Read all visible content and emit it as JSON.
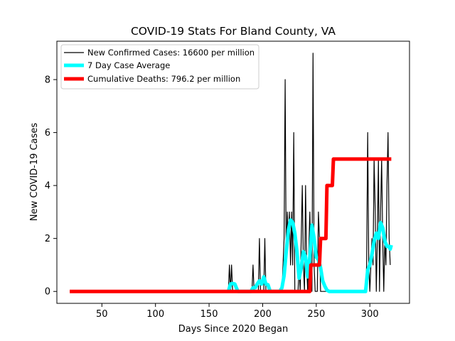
{
  "chart_data": {
    "type": "line",
    "title": "COVID-19 Stats For Bland County, VA",
    "xlabel": "Days Since 2020 Began",
    "ylabel": "New COVID-19 Cases",
    "xlim": [
      8,
      337
    ],
    "ylim": [
      -0.45,
      9.45
    ],
    "xticks": [
      50,
      100,
      150,
      200,
      250,
      300
    ],
    "yticks": [
      0,
      2,
      4,
      6,
      8
    ],
    "grid": false,
    "legend_position": "top-left",
    "series": [
      {
        "name": "New Confirmed Cases: 16600 per million",
        "color": "#000000",
        "points": [
          [
            20,
            0
          ],
          [
            168,
            0
          ],
          [
            169,
            1
          ],
          [
            170,
            0
          ],
          [
            171,
            1
          ],
          [
            172,
            0
          ],
          [
            190,
            0
          ],
          [
            191,
            1
          ],
          [
            192,
            0
          ],
          [
            196,
            0
          ],
          [
            197,
            2
          ],
          [
            198,
            0
          ],
          [
            201,
            0
          ],
          [
            202,
            2
          ],
          [
            203,
            0
          ],
          [
            218,
            0
          ],
          [
            219,
            1
          ],
          [
            220,
            2
          ],
          [
            221,
            8
          ],
          [
            222,
            1
          ],
          [
            223,
            3
          ],
          [
            224,
            2
          ],
          [
            225,
            3
          ],
          [
            226,
            1
          ],
          [
            227,
            3
          ],
          [
            228,
            1
          ],
          [
            229,
            6
          ],
          [
            230,
            0
          ],
          [
            233,
            0
          ],
          [
            234,
            1
          ],
          [
            235,
            0
          ],
          [
            236,
            2
          ],
          [
            237,
            4
          ],
          [
            238,
            1
          ],
          [
            239,
            0
          ],
          [
            240,
            4
          ],
          [
            241,
            1
          ],
          [
            242,
            0
          ],
          [
            244,
            3
          ],
          [
            245,
            1
          ],
          [
            246,
            0
          ],
          [
            247,
            9
          ],
          [
            248,
            1
          ],
          [
            249,
            0
          ],
          [
            251,
            0
          ],
          [
            252,
            3
          ],
          [
            253,
            2
          ],
          [
            254,
            0
          ],
          [
            255,
            0
          ],
          [
            258,
            0
          ],
          [
            296,
            0
          ],
          [
            297,
            1
          ],
          [
            298,
            6
          ],
          [
            299,
            1
          ],
          [
            300,
            0
          ],
          [
            302,
            2
          ],
          [
            303,
            1
          ],
          [
            304,
            5
          ],
          [
            305,
            3
          ],
          [
            306,
            0
          ],
          [
            307,
            2
          ],
          [
            308,
            5
          ],
          [
            309,
            0
          ],
          [
            310,
            3
          ],
          [
            311,
            5
          ],
          [
            312,
            2
          ],
          [
            313,
            0
          ],
          [
            314,
            2
          ],
          [
            315,
            1
          ],
          [
            316,
            4
          ],
          [
            317,
            6
          ],
          [
            318,
            2
          ],
          [
            319,
            1
          ]
        ]
      },
      {
        "name": "7 Day Case Average",
        "color": "#00ffff",
        "points": [
          [
            168,
            0
          ],
          [
            170,
            0.28
          ],
          [
            172,
            0.3
          ],
          [
            174,
            0.28
          ],
          [
            176,
            0.08
          ],
          [
            177,
            0
          ],
          [
            189,
            0
          ],
          [
            191,
            0.14
          ],
          [
            193,
            0.14
          ],
          [
            195,
            0.28
          ],
          [
            197,
            0.4
          ],
          [
            199,
            0.28
          ],
          [
            201,
            0.55
          ],
          [
            203,
            0.28
          ],
          [
            205,
            0.25
          ],
          [
            207,
            0
          ],
          [
            216,
            0
          ],
          [
            218,
            0.14
          ],
          [
            220,
            0.6
          ],
          [
            222,
            1.5
          ],
          [
            224,
            2.3
          ],
          [
            226,
            2.7
          ],
          [
            228,
            2.6
          ],
          [
            230,
            2.2
          ],
          [
            232,
            1.5
          ],
          [
            234,
            0.5
          ],
          [
            236,
            0.9
          ],
          [
            238,
            1.5
          ],
          [
            240,
            1.3
          ],
          [
            242,
            0.55
          ],
          [
            244,
            1.3
          ],
          [
            246,
            2.5
          ],
          [
            248,
            2.0
          ],
          [
            250,
            1.3
          ],
          [
            252,
            1.2
          ],
          [
            254,
            0.9
          ],
          [
            256,
            0.4
          ],
          [
            258,
            0.2
          ],
          [
            260,
            0.05
          ],
          [
            262,
            0
          ],
          [
            296,
            0
          ],
          [
            298,
            0.8
          ],
          [
            300,
            1.0
          ],
          [
            302,
            1.4
          ],
          [
            304,
            1.9
          ],
          [
            306,
            2.2
          ],
          [
            308,
            2.0
          ],
          [
            310,
            2.6
          ],
          [
            312,
            2.4
          ],
          [
            314,
            1.9
          ],
          [
            316,
            1.7
          ],
          [
            318,
            1.7
          ],
          [
            319,
            1.6
          ],
          [
            320,
            1.75
          ]
        ]
      },
      {
        "name": "Cumulative Deaths: 796.2 per million",
        "color": "#ff0000",
        "points": [
          [
            20,
            0
          ],
          [
            244,
            0
          ],
          [
            245,
            1
          ],
          [
            253,
            1
          ],
          [
            254,
            2
          ],
          [
            259,
            2
          ],
          [
            260,
            4
          ],
          [
            265,
            4
          ],
          [
            266,
            5
          ],
          [
            320,
            5
          ]
        ]
      }
    ]
  }
}
